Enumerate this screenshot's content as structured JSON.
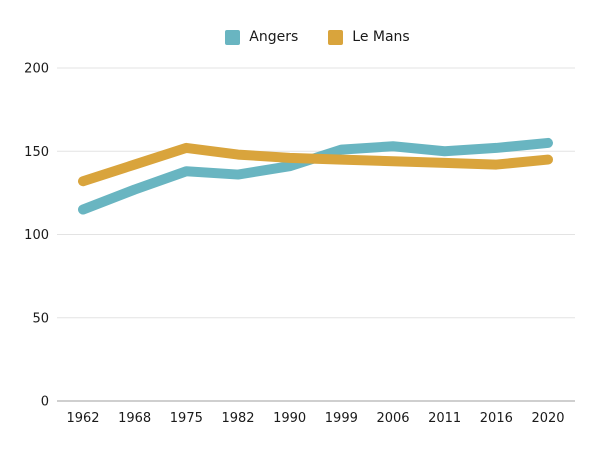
{
  "chart_data": {
    "type": "line",
    "categories": [
      "1962",
      "1968",
      "1975",
      "1982",
      "1990",
      "1999",
      "2006",
      "2011",
      "2016",
      "2020"
    ],
    "series": [
      {
        "name": "Angers",
        "color": "#69b5c1",
        "values": [
          115,
          127,
          138,
          136,
          141,
          151,
          153,
          150,
          152,
          155
        ]
      },
      {
        "name": "Le Mans",
        "color": "#d9a43c",
        "values": [
          132,
          142,
          152,
          148,
          146,
          145,
          144,
          143,
          142,
          145
        ]
      }
    ],
    "title": "",
    "xlabel": "",
    "ylabel": "",
    "ylim": [
      0,
      200
    ],
    "yticks": [
      0,
      50,
      100,
      150,
      200
    ],
    "grid": true,
    "legend_position": "top-center"
  },
  "colors": {
    "background": "#ffffff",
    "gridline": "#e3e3e3",
    "axis_line": "#bfbfbf",
    "text": "#1a1a1a"
  }
}
